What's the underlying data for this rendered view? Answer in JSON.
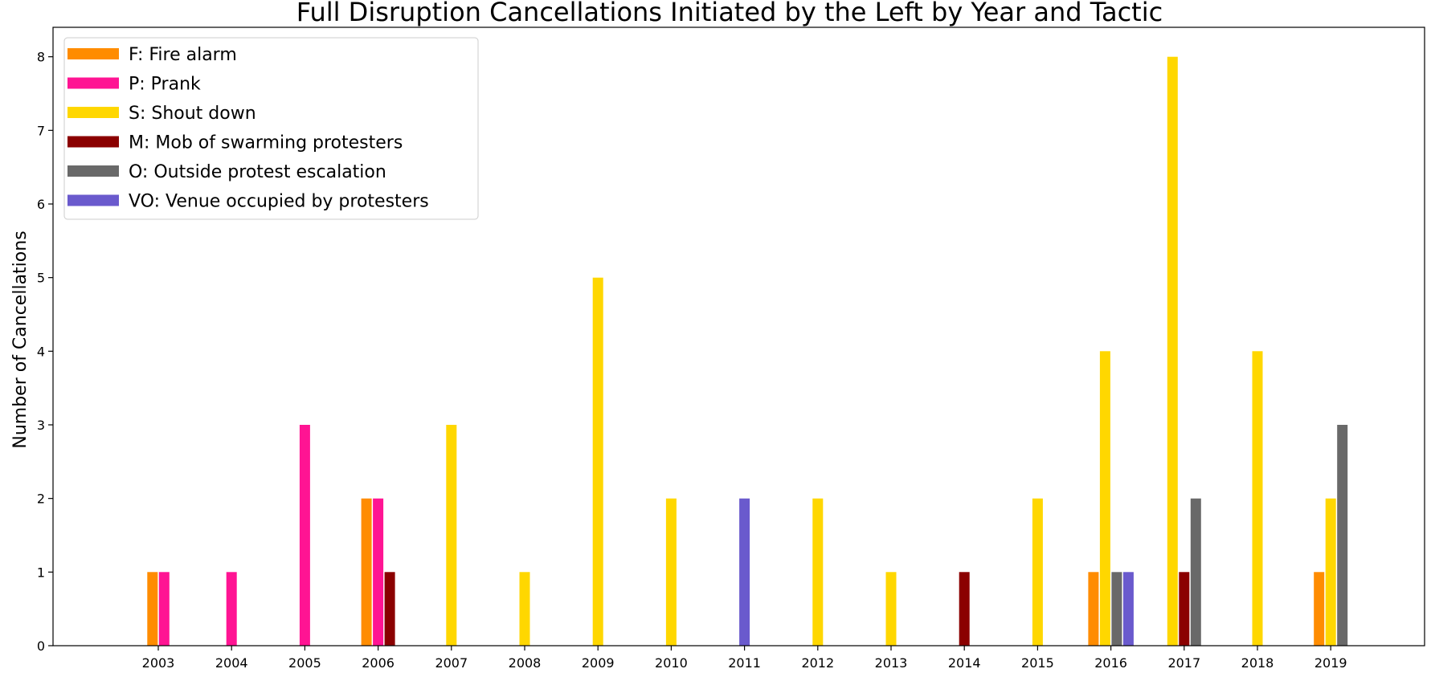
{
  "chart_data": {
    "type": "bar",
    "title": "Full Disruption Cancellations Initiated by the Left by Year and Tactic",
    "xlabel": "",
    "ylabel": "Number of Cancellations",
    "ylim": [
      0,
      8.4
    ],
    "yticks": [
      "0",
      "1",
      "2",
      "3",
      "4",
      "5",
      "6",
      "7",
      "8"
    ],
    "categories": [
      "2003",
      "2004",
      "2005",
      "2006",
      "2007",
      "2008",
      "2009",
      "2010",
      "2011",
      "2012",
      "2013",
      "2014",
      "2015",
      "2016",
      "2017",
      "2018",
      "2019"
    ],
    "legend_position": "top-left",
    "grid": false,
    "series": [
      {
        "name": "F: Fire alarm",
        "color": "#FF8C00",
        "values": [
          1,
          0,
          0,
          2,
          0,
          0,
          0,
          0,
          0,
          0,
          0,
          0,
          0,
          1,
          0,
          0,
          1
        ]
      },
      {
        "name": "P: Prank",
        "color": "#FF1493",
        "values": [
          1,
          1,
          3,
          2,
          0,
          0,
          0,
          0,
          0,
          0,
          0,
          0,
          0,
          0,
          0,
          0,
          0
        ]
      },
      {
        "name": "S: Shout down",
        "color": "#FFD700",
        "values": [
          0,
          0,
          0,
          0,
          3,
          1,
          5,
          2,
          0,
          2,
          1,
          0,
          2,
          4,
          8,
          4,
          2
        ]
      },
      {
        "name": "M: Mob of swarming protesters",
        "color": "#8B0000",
        "values": [
          0,
          0,
          0,
          1,
          0,
          0,
          0,
          0,
          0,
          0,
          0,
          1,
          0,
          0,
          1,
          0,
          0
        ]
      },
      {
        "name": "O: Outside protest escalation",
        "color": "#696969",
        "values": [
          0,
          0,
          0,
          0,
          0,
          0,
          0,
          0,
          0,
          0,
          0,
          0,
          0,
          1,
          2,
          0,
          3
        ]
      },
      {
        "name": "VO: Venue occupied by protesters",
        "color": "#6A5ACD",
        "values": [
          0,
          0,
          0,
          0,
          0,
          0,
          0,
          0,
          2,
          0,
          0,
          0,
          0,
          1,
          0,
          0,
          0
        ]
      }
    ]
  }
}
